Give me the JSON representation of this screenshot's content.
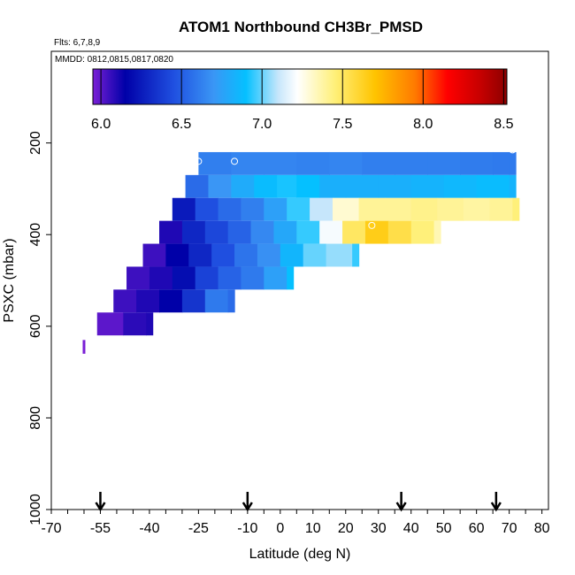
{
  "chart_data": {
    "type": "heatmap",
    "title": "ATOM1 Northbound CH3Br_PMSD",
    "flights_label": "Flts: 6,7,8,9",
    "dates_label": "MMDD: 0812,0815,0817,0820",
    "xlabel": "Latitude (deg N)",
    "ylabel": "PSXC (mbar)",
    "xlim": [
      -70,
      82
    ],
    "ylim": [
      1000,
      0
    ],
    "x_ticks": [
      "-70",
      "-55",
      "-40",
      "-25",
      "-10",
      "0",
      "10",
      "20",
      "30",
      "40",
      "50",
      "60",
      "70",
      "80"
    ],
    "x_tick_values": [
      -70,
      -55,
      -40,
      -25,
      -10,
      0,
      10,
      20,
      30,
      40,
      50,
      60,
      70,
      80
    ],
    "y_ticks": [
      "200",
      "400",
      "600",
      "800",
      "1000"
    ],
    "y_tick_values": [
      200,
      400,
      600,
      800,
      1000
    ],
    "colorbar": {
      "min": 5.95,
      "max": 8.52,
      "ticks": [
        "6.0",
        "6.5",
        "7.0",
        "7.5",
        "8.0",
        "8.5"
      ],
      "tick_values": [
        6.0,
        6.5,
        7.0,
        7.5,
        8.0,
        8.5
      ],
      "colors": [
        "#7a1fd6",
        "#0000a8",
        "#1f4fe0",
        "#3a96f5",
        "#05c0ff",
        "#c6e6fb",
        "#ffffff",
        "#fff07a",
        "#ffc400",
        "#ff7a00",
        "#ff0000",
        "#c80000",
        "#8c0000"
      ],
      "color_values": [
        5.95,
        6.15,
        6.45,
        6.7,
        6.9,
        7.1,
        7.22,
        7.45,
        7.7,
        7.95,
        8.15,
        8.35,
        8.52
      ]
    },
    "arrows_lat": [
      -55,
      -10,
      37,
      66
    ],
    "bands": [
      {
        "p_top": 220,
        "p_bot": 270,
        "cells": [
          [
            -25,
            6.62
          ],
          [
            -15,
            6.64
          ],
          [
            -5,
            6.64
          ],
          [
            5,
            6.63
          ],
          [
            15,
            6.64
          ],
          [
            25,
            6.62
          ],
          [
            35,
            6.62
          ],
          [
            45,
            6.62
          ],
          [
            55,
            6.61
          ],
          [
            65,
            6.6
          ],
          [
            70,
            6.6
          ]
        ]
      },
      {
        "p_top": 270,
        "p_bot": 320,
        "cells": [
          [
            -29,
            6.55
          ],
          [
            -22,
            6.7
          ],
          [
            -15,
            6.8
          ],
          [
            -8,
            6.88
          ],
          [
            -1,
            6.92
          ],
          [
            5,
            6.9
          ],
          [
            12,
            6.82
          ],
          [
            20,
            6.82
          ],
          [
            30,
            6.82
          ],
          [
            40,
            6.84
          ],
          [
            50,
            6.86
          ],
          [
            60,
            6.88
          ],
          [
            70,
            6.84
          ]
        ]
      },
      {
        "p_top": 320,
        "p_bot": 370,
        "cells": [
          [
            -33,
            6.25
          ],
          [
            -26,
            6.45
          ],
          [
            -19,
            6.55
          ],
          [
            -12,
            6.62
          ],
          [
            -5,
            6.75
          ],
          [
            2,
            6.95
          ],
          [
            9,
            7.1
          ],
          [
            16,
            7.3
          ],
          [
            24,
            7.4
          ],
          [
            32,
            7.4
          ],
          [
            40,
            7.42
          ],
          [
            48,
            7.4
          ],
          [
            56,
            7.38
          ],
          [
            64,
            7.4
          ],
          [
            71,
            7.45
          ]
        ]
      },
      {
        "p_top": 370,
        "p_bot": 420,
        "cells": [
          [
            -37,
            6.1
          ],
          [
            -30,
            6.3
          ],
          [
            -23,
            6.42
          ],
          [
            -16,
            6.52
          ],
          [
            -9,
            6.65
          ],
          [
            -2,
            6.78
          ],
          [
            5,
            6.95
          ],
          [
            12,
            7.2
          ],
          [
            19,
            7.5
          ],
          [
            26,
            7.65
          ],
          [
            33,
            7.55
          ],
          [
            40,
            7.45
          ],
          [
            47,
            7.35
          ]
        ]
      },
      {
        "p_top": 420,
        "p_bot": 470,
        "cells": [
          [
            -42,
            6.05
          ],
          [
            -35,
            6.15
          ],
          [
            -28,
            6.3
          ],
          [
            -21,
            6.45
          ],
          [
            -14,
            6.58
          ],
          [
            -7,
            6.68
          ],
          [
            0,
            6.85
          ],
          [
            7,
            7.0
          ],
          [
            14,
            7.05
          ],
          [
            22,
            6.95
          ]
        ]
      },
      {
        "p_top": 470,
        "p_bot": 520,
        "cells": [
          [
            -47,
            6.05
          ],
          [
            -40,
            6.1
          ],
          [
            -33,
            6.2
          ],
          [
            -26,
            6.4
          ],
          [
            -19,
            6.52
          ],
          [
            -12,
            6.6
          ],
          [
            -5,
            6.75
          ],
          [
            2,
            6.9
          ]
        ]
      },
      {
        "p_top": 520,
        "p_bot": 570,
        "cells": [
          [
            -51,
            6.05
          ],
          [
            -44,
            6.1
          ],
          [
            -37,
            6.15
          ],
          [
            -30,
            6.35
          ],
          [
            -23,
            6.6
          ],
          [
            -16,
            6.55
          ]
        ]
      },
      {
        "p_top": 570,
        "p_bot": 620,
        "cells": [
          [
            -56,
            6.0
          ],
          [
            -48,
            6.08
          ],
          [
            -41,
            6.1
          ]
        ]
      }
    ],
    "isolated_points": [
      {
        "lat": -60,
        "p_top": 630,
        "p_bot": 660,
        "value": 5.95
      }
    ],
    "markers": [
      {
        "lat": -25,
        "p": 240
      },
      {
        "lat": -14,
        "p": 240
      },
      {
        "lat": 28,
        "p": 380
      },
      {
        "lat": 71,
        "p": 215
      }
    ]
  }
}
